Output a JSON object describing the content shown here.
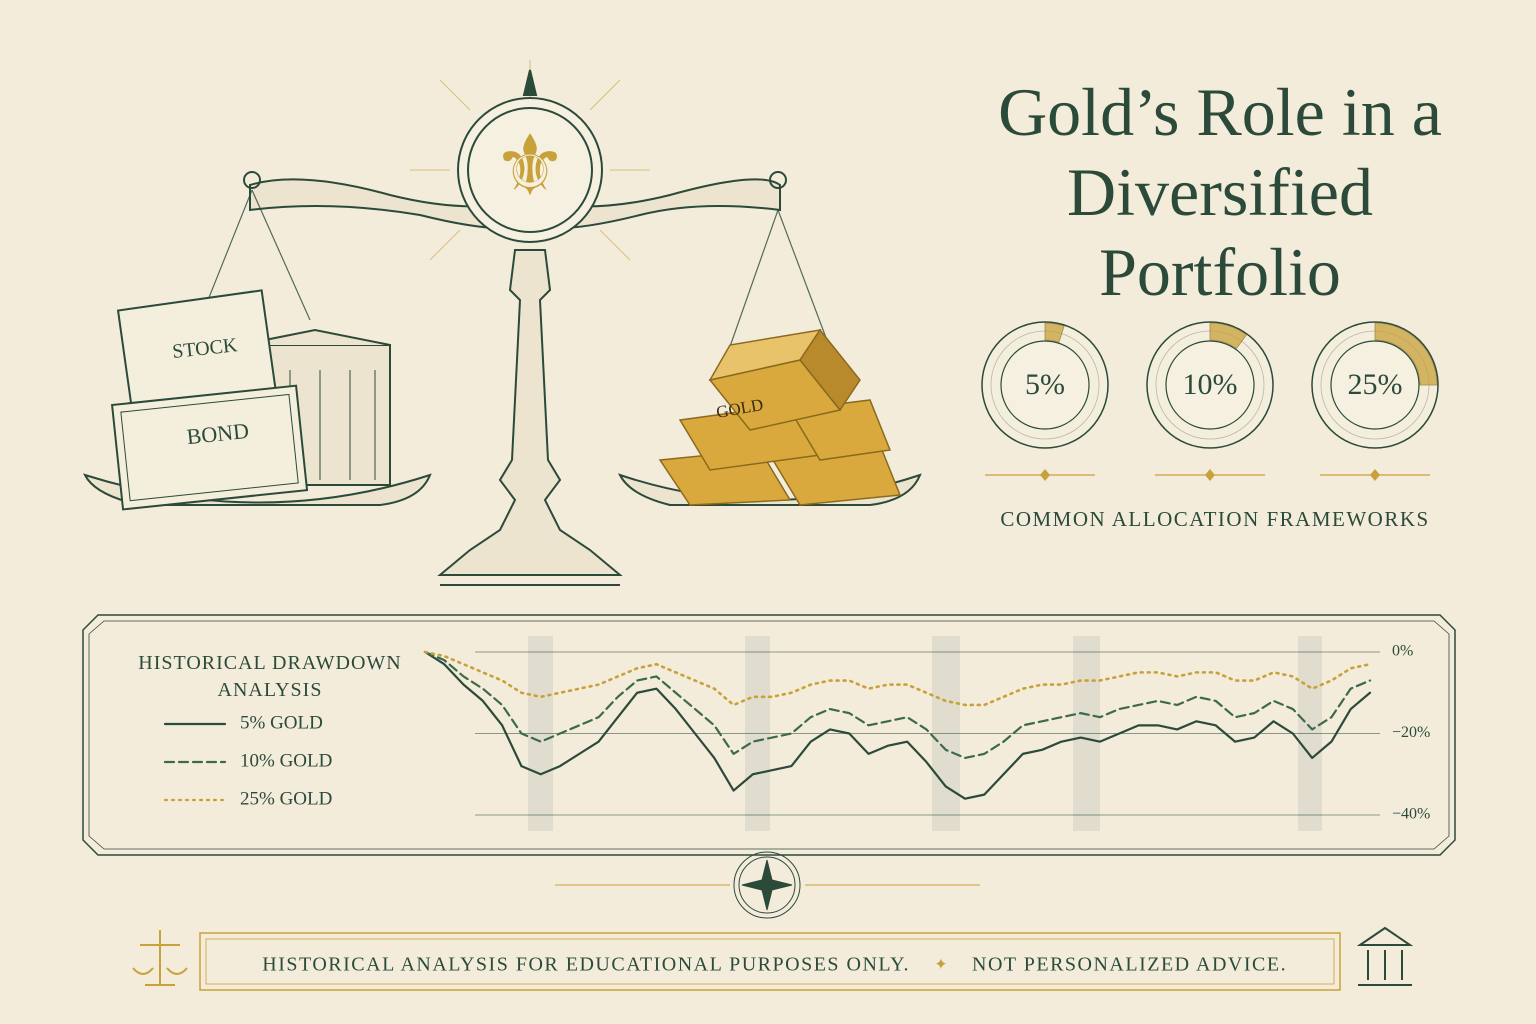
{
  "header": {
    "title": "Gold’s Role in a Diversified Portfolio"
  },
  "illustration": {
    "stock_label": "STOCK",
    "bond_label": "BOND",
    "gold_label": "GOLD"
  },
  "chart_data": [
    {
      "type": "donut",
      "values": [
        5,
        10,
        25
      ],
      "value_labels": [
        "5%",
        "10%",
        "25%"
      ],
      "color": "#c9a13b",
      "caption": "COMMON ALLOCATION FRAMEWORKS"
    },
    {
      "type": "line",
      "title": "HISTORICAL DRAWDOWN ANALYSIS",
      "series": [
        {
          "name": "5% GOLD",
          "color": "#2c4a3a",
          "dash": "solid",
          "values": [
            0,
            -3,
            -8,
            -12,
            -18,
            -28,
            -30,
            -28,
            -25,
            -22,
            -16,
            -10,
            -9,
            -14,
            -20,
            -26,
            -34,
            -30,
            -29,
            -28,
            -22,
            -19,
            -20,
            -25,
            -23,
            -22,
            -27,
            -33,
            -36,
            -35,
            -30,
            -25,
            -24,
            -22,
            -21,
            -22,
            -20,
            -18,
            -18,
            -19,
            -17,
            -18,
            -22,
            -21,
            -17,
            -20,
            -26,
            -22,
            -14,
            -10
          ]
        },
        {
          "name": "10% GOLD",
          "color": "#3d6a4c",
          "dash": "dashed",
          "values": [
            0,
            -2,
            -6,
            -9,
            -13,
            -20,
            -22,
            -20,
            -18,
            -16,
            -11,
            -7,
            -6,
            -10,
            -14,
            -18,
            -25,
            -22,
            -21,
            -20,
            -16,
            -14,
            -15,
            -18,
            -17,
            -16,
            -19,
            -24,
            -26,
            -25,
            -22,
            -18,
            -17,
            -16,
            -15,
            -16,
            -14,
            -13,
            -12,
            -13,
            -11,
            -12,
            -16,
            -15,
            -12,
            -14,
            -19,
            -16,
            -9,
            -7
          ]
        },
        {
          "name": "25% GOLD",
          "color": "#c9a13b",
          "dash": "dotted",
          "values": [
            0,
            -1,
            -3,
            -5,
            -7,
            -10,
            -11,
            -10,
            -9,
            -8,
            -6,
            -4,
            -3,
            -5,
            -7,
            -9,
            -13,
            -11,
            -11,
            -10,
            -8,
            -7,
            -7,
            -9,
            -8,
            -8,
            -10,
            -12,
            -13,
            -13,
            -11,
            -9,
            -8,
            -8,
            -7,
            -7,
            -6,
            -5,
            -5,
            -6,
            -5,
            -5,
            -7,
            -7,
            -5,
            -6,
            -9,
            -7,
            -4,
            -3
          ]
        }
      ],
      "ylim": [
        -40,
        0
      ],
      "yticks": [
        {
          "value": 0,
          "label": "0%"
        },
        {
          "value": -20,
          "label": "−20%"
        },
        {
          "value": -40,
          "label": "−40%"
        }
      ],
      "grid": true
    }
  ],
  "footer": {
    "note": "HISTORICAL ANALYSIS FOR EDUCATIONAL PURPOSES ONLY.",
    "advice": "NOT PERSONALIZED ADVICE."
  }
}
